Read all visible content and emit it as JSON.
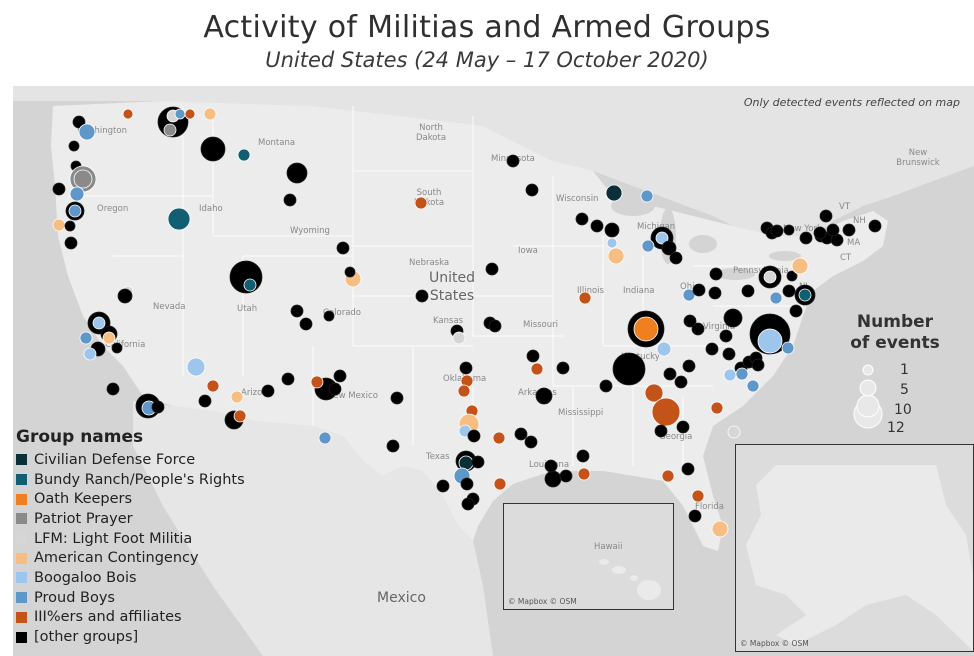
{
  "title": "Activity of Militias and Armed Groups",
  "subtitle": "United States (24 May – 17 October 2020)",
  "note": "Only detected events reflected on map",
  "map": {
    "country_label": "United States",
    "mexico_label": "Mexico",
    "places": [
      "Washington",
      "Montana",
      "North Dakota",
      "Minnesota",
      "South Dakota",
      "Oregon",
      "Idaho",
      "Wyoming",
      "Wisconsin",
      "Michigan",
      "Iowa",
      "Nebraska",
      "Nevada",
      "Utah",
      "Colorado",
      "Kansas",
      "Missouri",
      "Illinois",
      "Indiana",
      "Ohio",
      "Pennsylvania",
      "New York",
      "California",
      "Arizona",
      "New Mexico",
      "Oklahoma",
      "Arkansas",
      "Texas",
      "Louisiana",
      "Mississippi",
      "Georgia",
      "Florida",
      "Virginia",
      "Kentucky",
      "New Brunswick",
      "Hawaii",
      "VT",
      "NH",
      "MA",
      "CT",
      "NJ"
    ],
    "credit": "© Mapbox © OSM"
  },
  "legend": {
    "title": "Group names",
    "items": [
      {
        "label": "Civilian Defense Force",
        "color": "#0b2f38"
      },
      {
        "label": "Bundy Ranch/People's Rights",
        "color": "#125f73"
      },
      {
        "label": "Oath Keepers",
        "color": "#f0801f"
      },
      {
        "label": "Patriot Prayer",
        "color": "#8a8a8a"
      },
      {
        "label": "LFM: Light Foot Militia",
        "color": "#d6d6d6"
      },
      {
        "label": "American Contingency",
        "color": "#f6be82"
      },
      {
        "label": "Boogaloo Bois",
        "color": "#9ec6ec"
      },
      {
        "label": "Proud Boys",
        "color": "#5f97c9"
      },
      {
        "label": "III%ers and affiliates",
        "color": "#c4531a"
      },
      {
        "label": "[other groups]",
        "color": "#000000"
      }
    ]
  },
  "size_legend": {
    "title_line1": "Number",
    "title_line2": "of events",
    "values": [
      1,
      5,
      10,
      12
    ]
  }
}
